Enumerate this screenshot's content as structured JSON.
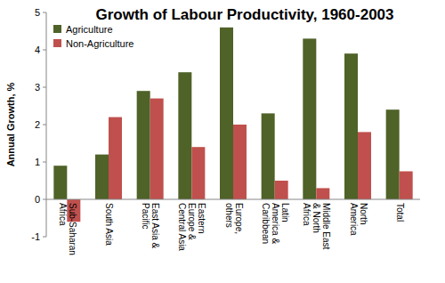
{
  "chart_data": {
    "type": "bar",
    "title": "Growth of Labour Productivity, 1960-2003",
    "y_label": "Annual Growth, %",
    "categories": [
      "Sub-Saharan Africa",
      "South Asia",
      "East Asia & Pacific",
      "Eastern Europe & Central Asia",
      "Europe, others",
      "Latin America & Caribbean",
      "Middle East & North Africa",
      "North America",
      "Total"
    ],
    "series": [
      {
        "name": "Agriculture",
        "color": "#4f6228",
        "values": [
          0.9,
          1.2,
          2.9,
          3.4,
          4.6,
          2.3,
          4.3,
          3.9,
          2.4
        ]
      },
      {
        "name": "Non-Agriculture",
        "color": "#c0504d",
        "values": [
          -0.6,
          2.2,
          2.7,
          1.4,
          2.0,
          0.5,
          0.3,
          1.8,
          0.75
        ]
      }
    ],
    "ylim": [
      -1,
      5
    ],
    "yticks": [
      -1,
      0,
      1,
      2,
      3,
      4,
      5
    ],
    "grid": false,
    "legend": "top-left"
  }
}
